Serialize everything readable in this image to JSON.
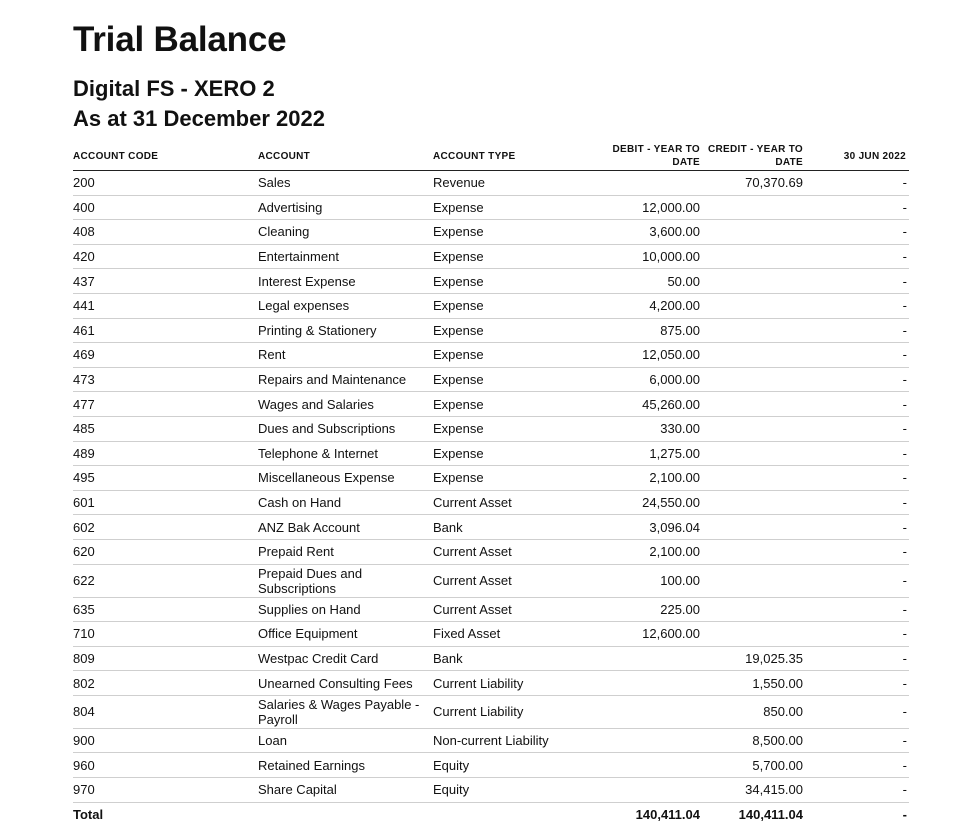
{
  "report": {
    "title": "Trial Balance",
    "organisation": "Digital FS - XERO 2",
    "date_line": "As at 31 December 2022"
  },
  "columns": {
    "code": "ACCOUNT CODE",
    "account": "ACCOUNT",
    "type": "ACCOUNT TYPE",
    "debit": "DEBIT - YEAR TO DATE",
    "credit": "CREDIT - YEAR TO DATE",
    "prior": "30 JUN 2022"
  },
  "rows": [
    {
      "code": "200",
      "account": "Sales",
      "type": "Revenue",
      "debit": "",
      "credit": "70,370.69",
      "prior": "-"
    },
    {
      "code": "400",
      "account": "Advertising",
      "type": "Expense",
      "debit": "12,000.00",
      "credit": "",
      "prior": "-"
    },
    {
      "code": "408",
      "account": "Cleaning",
      "type": "Expense",
      "debit": "3,600.00",
      "credit": "",
      "prior": "-"
    },
    {
      "code": "420",
      "account": "Entertainment",
      "type": "Expense",
      "debit": "10,000.00",
      "credit": "",
      "prior": "-"
    },
    {
      "code": "437",
      "account": "Interest Expense",
      "type": "Expense",
      "debit": "50.00",
      "credit": "",
      "prior": "-"
    },
    {
      "code": "441",
      "account": "Legal expenses",
      "type": "Expense",
      "debit": "4,200.00",
      "credit": "",
      "prior": "-"
    },
    {
      "code": "461",
      "account": "Printing & Stationery",
      "type": "Expense",
      "debit": "875.00",
      "credit": "",
      "prior": "-"
    },
    {
      "code": "469",
      "account": "Rent",
      "type": "Expense",
      "debit": "12,050.00",
      "credit": "",
      "prior": "-"
    },
    {
      "code": "473",
      "account": "Repairs and Maintenance",
      "type": "Expense",
      "debit": "6,000.00",
      "credit": "",
      "prior": "-"
    },
    {
      "code": "477",
      "account": "Wages and Salaries",
      "type": "Expense",
      "debit": "45,260.00",
      "credit": "",
      "prior": "-"
    },
    {
      "code": "485",
      "account": "Dues and Subscriptions",
      "type": "Expense",
      "debit": "330.00",
      "credit": "",
      "prior": "-"
    },
    {
      "code": "489",
      "account": "Telephone & Internet",
      "type": "Expense",
      "debit": "1,275.00",
      "credit": "",
      "prior": "-"
    },
    {
      "code": "495",
      "account": "Miscellaneous Expense",
      "type": "Expense",
      "debit": "2,100.00",
      "credit": "",
      "prior": "-"
    },
    {
      "code": "601",
      "account": "Cash on Hand",
      "type": "Current Asset",
      "debit": "24,550.00",
      "credit": "",
      "prior": "-"
    },
    {
      "code": "602",
      "account": "ANZ Bak Account",
      "type": "Bank",
      "debit": "3,096.04",
      "credit": "",
      "prior": "-"
    },
    {
      "code": "620",
      "account": "Prepaid Rent",
      "type": "Current Asset",
      "debit": "2,100.00",
      "credit": "",
      "prior": "-"
    },
    {
      "code": "622",
      "account": "Prepaid Dues and Subscriptions",
      "type": "Current Asset",
      "debit": "100.00",
      "credit": "",
      "prior": "-"
    },
    {
      "code": "635",
      "account": "Supplies on Hand",
      "type": "Current Asset",
      "debit": "225.00",
      "credit": "",
      "prior": "-"
    },
    {
      "code": "710",
      "account": "Office Equipment",
      "type": "Fixed Asset",
      "debit": "12,600.00",
      "credit": "",
      "prior": "-"
    },
    {
      "code": "809",
      "account": "Westpac Credit Card",
      "type": "Bank",
      "debit": "",
      "credit": "19,025.35",
      "prior": "-"
    },
    {
      "code": "802",
      "account": "Unearned Consulting Fees",
      "type": "Current Liability",
      "debit": "",
      "credit": "1,550.00",
      "prior": "-"
    },
    {
      "code": "804",
      "account": "Salaries & Wages Payable - Payroll",
      "type": "Current Liability",
      "debit": "",
      "credit": "850.00",
      "prior": "-"
    },
    {
      "code": "900",
      "account": "Loan",
      "type": "Non-current Liability",
      "debit": "",
      "credit": "8,500.00",
      "prior": "-"
    },
    {
      "code": "960",
      "account": "Retained Earnings",
      "type": "Equity",
      "debit": "",
      "credit": "5,700.00",
      "prior": "-"
    },
    {
      "code": "970",
      "account": "Share Capital",
      "type": "Equity",
      "debit": "",
      "credit": "34,415.00",
      "prior": "-"
    }
  ],
  "total": {
    "label": "Total",
    "debit": "140,411.04",
    "credit": "140,411.04",
    "prior": "-"
  }
}
